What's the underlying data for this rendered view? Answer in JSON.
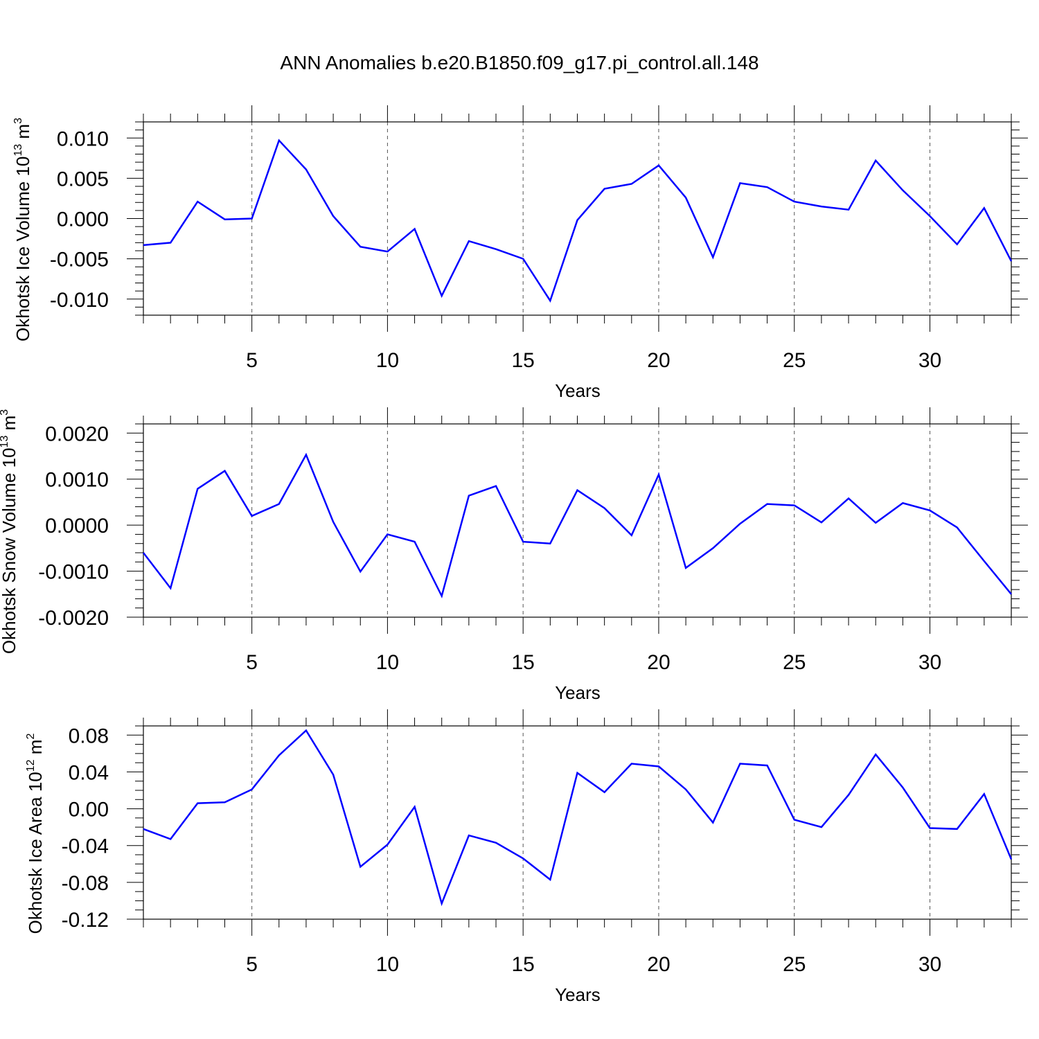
{
  "title": "ANN Anomalies b.e20.B1850.f09_g17.pi_control.all.148",
  "line_color": "#0000ff",
  "chart_data": [
    {
      "type": "line",
      "ylabel_main": "Okhotsk Ice Volume 10",
      "ylabel_exp": "13",
      "ylabel_unit": " m",
      "ylabel_unit_exp": "3",
      "xlabel": "Years",
      "xlim": [
        1,
        33
      ],
      "ylim": [
        -0.012,
        0.012
      ],
      "xticks": [
        5,
        10,
        15,
        20,
        25,
        30
      ],
      "xtick_labels": [
        "5",
        "10",
        "15",
        "20",
        "25",
        "30"
      ],
      "yticks": [
        -0.01,
        -0.005,
        0.0,
        0.005,
        0.01
      ],
      "ytick_labels": [
        "-0.010",
        "-0.005",
        "0.000",
        "0.005",
        "0.010"
      ],
      "yminor_step": 0.001,
      "x": [
        1,
        2,
        3,
        4,
        5,
        6,
        7,
        8,
        9,
        10,
        11,
        12,
        13,
        14,
        15,
        16,
        17,
        18,
        19,
        20,
        21,
        22,
        23,
        24,
        25,
        26,
        27,
        28,
        29,
        30,
        31,
        32,
        33
      ],
      "values": [
        -0.0033,
        -0.003,
        0.0021,
        -0.0001,
        0.0,
        0.0097,
        0.0061,
        0.0003,
        -0.0035,
        -0.0041,
        -0.0013,
        -0.0096,
        -0.0028,
        -0.0038,
        -0.005,
        -0.0102,
        -0.0002,
        0.0037,
        0.0043,
        0.0066,
        0.0026,
        -0.0048,
        0.0044,
        0.0039,
        0.0021,
        0.0015,
        0.0011,
        0.0072,
        0.0035,
        0.0003,
        -0.0032,
        0.0013,
        -0.0053
      ]
    },
    {
      "type": "line",
      "ylabel_main": "Okhotsk Snow Volume 10",
      "ylabel_exp": "13",
      "ylabel_unit": " m",
      "ylabel_unit_exp": "3",
      "xlabel": "Years",
      "xlim": [
        1,
        33
      ],
      "ylim": [
        -0.002,
        0.0022
      ],
      "xticks": [
        5,
        10,
        15,
        20,
        25,
        30
      ],
      "xtick_labels": [
        "5",
        "10",
        "15",
        "20",
        "25",
        "30"
      ],
      "yticks": [
        -0.002,
        -0.001,
        0.0,
        0.001,
        0.002
      ],
      "ytick_labels": [
        "-0.0020",
        "-0.0010",
        "0.0000",
        "0.0010",
        "0.0020"
      ],
      "yminor_step": 0.0002,
      "x": [
        1,
        2,
        3,
        4,
        5,
        6,
        7,
        8,
        9,
        10,
        11,
        12,
        13,
        14,
        15,
        16,
        17,
        18,
        19,
        20,
        21,
        22,
        23,
        24,
        25,
        26,
        27,
        28,
        29,
        30,
        31,
        32,
        33
      ],
      "values": [
        -0.0006,
        -0.00137,
        0.00079,
        0.00118,
        0.0002,
        0.00046,
        0.00153,
        7e-05,
        -0.00101,
        -0.0002,
        -0.00036,
        -0.00154,
        0.00064,
        0.00085,
        -0.00036,
        -0.0004,
        0.00076,
        0.00037,
        -0.00022,
        0.0011,
        -0.00093,
        -0.0005,
        3e-05,
        0.00046,
        0.00043,
        6e-05,
        0.00058,
        5e-05,
        0.00048,
        0.00032,
        -5e-05,
        -0.00078,
        -0.0015
      ]
    },
    {
      "type": "line",
      "ylabel_main": "Okhotsk Ice Area 10",
      "ylabel_exp": "12",
      "ylabel_unit": " m",
      "ylabel_unit_exp": "2",
      "xlabel": "Years",
      "xlim": [
        1,
        33
      ],
      "ylim": [
        -0.12,
        0.09
      ],
      "xticks": [
        5,
        10,
        15,
        20,
        25,
        30
      ],
      "xtick_labels": [
        "5",
        "10",
        "15",
        "20",
        "25",
        "30"
      ],
      "yticks": [
        -0.12,
        -0.08,
        -0.04,
        0.0,
        0.04,
        0.08
      ],
      "ytick_labels": [
        "-0.12",
        "-0.08",
        "-0.04",
        "0.00",
        "0.04",
        "0.08"
      ],
      "yminor_step": 0.01,
      "x": [
        1,
        2,
        3,
        4,
        5,
        6,
        7,
        8,
        9,
        10,
        11,
        12,
        13,
        14,
        15,
        16,
        17,
        18,
        19,
        20,
        21,
        22,
        23,
        24,
        25,
        26,
        27,
        28,
        29,
        30,
        31,
        32,
        33
      ],
      "values": [
        -0.022,
        -0.033,
        0.006,
        0.007,
        0.021,
        0.058,
        0.085,
        0.037,
        -0.063,
        -0.039,
        0.002,
        -0.103,
        -0.029,
        -0.037,
        -0.054,
        -0.077,
        0.039,
        0.018,
        0.049,
        0.046,
        0.021,
        -0.015,
        0.049,
        0.047,
        -0.012,
        -0.02,
        0.015,
        0.059,
        0.023,
        -0.021,
        -0.022,
        0.016,
        -0.055
      ]
    }
  ]
}
